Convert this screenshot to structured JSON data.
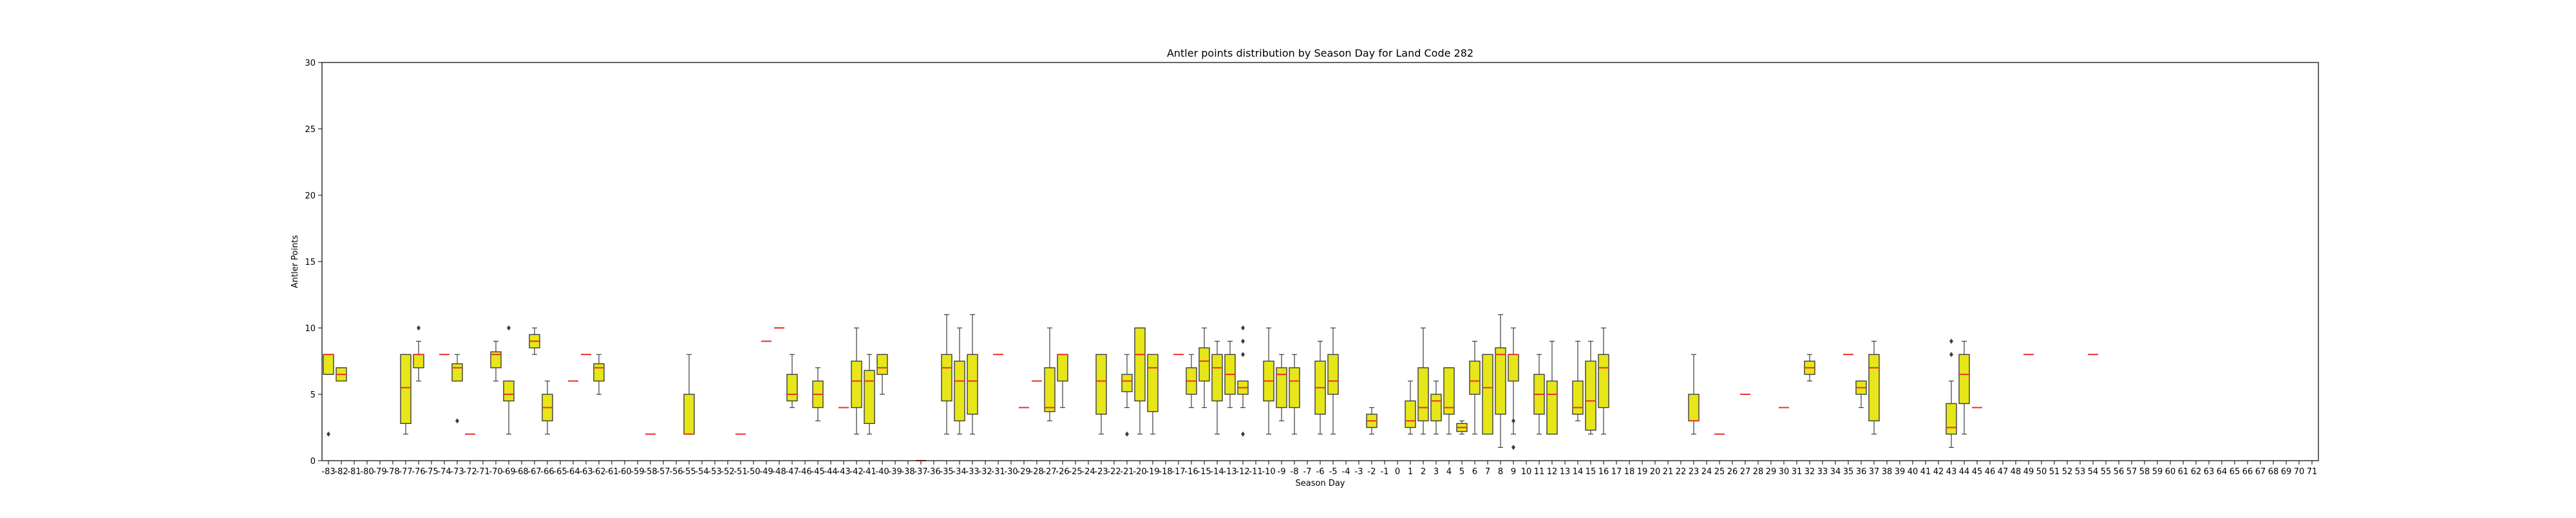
{
  "chart_data": {
    "type": "box",
    "title": "Antler points distribution by Season Day for Land Code 282",
    "xlabel": "Season Day",
    "ylabel": "Antler Points",
    "ylim": [
      0,
      30
    ],
    "y_ticks": [
      0,
      5,
      10,
      15,
      20,
      25,
      30
    ],
    "x_range": [
      -83,
      71
    ],
    "grid": false,
    "legend": "none",
    "colors": {
      "box_fill": "#e6e619",
      "box_edge": "#3d3d3d",
      "median": "#e8312a",
      "whisker": "#3d3d3d"
    },
    "boxes": [
      {
        "day": -83,
        "q1": 6.5,
        "median": 8,
        "q3": 8,
        "low": 6.5,
        "high": 8,
        "outliers": [
          2
        ]
      },
      {
        "day": -82,
        "q1": 6,
        "median": 6.5,
        "q3": 7,
        "low": 6,
        "high": 7,
        "outliers": []
      },
      {
        "day": -77,
        "q1": 2.8,
        "median": 5.5,
        "q3": 8,
        "low": 2,
        "high": 8,
        "outliers": []
      },
      {
        "day": -76,
        "q1": 7,
        "median": 8,
        "q3": 8,
        "low": 6,
        "high": 9,
        "outliers": [
          10
        ]
      },
      {
        "day": -74,
        "q1": 8,
        "median": 8,
        "q3": 8,
        "low": 8,
        "high": 8,
        "outliers": []
      },
      {
        "day": -73,
        "q1": 6,
        "median": 7,
        "q3": 7.3,
        "low": 6,
        "high": 8,
        "outliers": [
          3
        ]
      },
      {
        "day": -72,
        "q1": 2,
        "median": 2,
        "q3": 2,
        "low": 2,
        "high": 2,
        "outliers": []
      },
      {
        "day": -70,
        "q1": 7,
        "median": 8,
        "q3": 8.2,
        "low": 6,
        "high": 9,
        "outliers": []
      },
      {
        "day": -69,
        "q1": 4.5,
        "median": 5,
        "q3": 6,
        "low": 2,
        "high": 6,
        "outliers": [
          10
        ]
      },
      {
        "day": -67,
        "q1": 8.5,
        "median": 9,
        "q3": 9.5,
        "low": 8,
        "high": 10,
        "outliers": []
      },
      {
        "day": -66,
        "q1": 3,
        "median": 4,
        "q3": 5,
        "low": 2,
        "high": 6,
        "outliers": []
      },
      {
        "day": -64,
        "q1": 6,
        "median": 6,
        "q3": 6,
        "low": 6,
        "high": 6,
        "outliers": []
      },
      {
        "day": -63,
        "q1": 8,
        "median": 8,
        "q3": 8,
        "low": 8,
        "high": 8,
        "outliers": []
      },
      {
        "day": -62,
        "q1": 6,
        "median": 7,
        "q3": 7.3,
        "low": 5,
        "high": 8,
        "outliers": []
      },
      {
        "day": -58,
        "q1": 2,
        "median": 2,
        "q3": 2,
        "low": 2,
        "high": 2,
        "outliers": []
      },
      {
        "day": -55,
        "q1": 2,
        "median": 2,
        "q3": 5,
        "low": 2,
        "high": 8,
        "outliers": []
      },
      {
        "day": -51,
        "q1": 2,
        "median": 2,
        "q3": 2,
        "low": 2,
        "high": 2,
        "outliers": []
      },
      {
        "day": -49,
        "q1": 9,
        "median": 9,
        "q3": 9,
        "low": 9,
        "high": 9,
        "outliers": []
      },
      {
        "day": -48,
        "q1": 10,
        "median": 10,
        "q3": 10,
        "low": 10,
        "high": 10,
        "outliers": []
      },
      {
        "day": -47,
        "q1": 4.5,
        "median": 5,
        "q3": 6.5,
        "low": 4,
        "high": 8,
        "outliers": []
      },
      {
        "day": -45,
        "q1": 4,
        "median": 5,
        "q3": 6,
        "low": 3,
        "high": 7,
        "outliers": []
      },
      {
        "day": -43,
        "q1": 4,
        "median": 4,
        "q3": 4,
        "low": 4,
        "high": 4,
        "outliers": []
      },
      {
        "day": -42,
        "q1": 4,
        "median": 6,
        "q3": 7.5,
        "low": 2,
        "high": 10,
        "outliers": []
      },
      {
        "day": -41,
        "q1": 2.8,
        "median": 6,
        "q3": 6.8,
        "low": 2,
        "high": 8,
        "outliers": []
      },
      {
        "day": -40,
        "q1": 6.5,
        "median": 7,
        "q3": 8,
        "low": 5,
        "high": 8,
        "outliers": []
      },
      {
        "day": -37,
        "q1": 0,
        "median": 0,
        "q3": 0,
        "low": 0,
        "high": 0,
        "outliers": []
      },
      {
        "day": -35,
        "q1": 4.5,
        "median": 7,
        "q3": 8,
        "low": 2,
        "high": 11,
        "outliers": []
      },
      {
        "day": -34,
        "q1": 3,
        "median": 6,
        "q3": 7.5,
        "low": 2,
        "high": 10,
        "outliers": []
      },
      {
        "day": -33,
        "q1": 3.5,
        "median": 6,
        "q3": 8,
        "low": 2,
        "high": 11,
        "outliers": []
      },
      {
        "day": -31,
        "q1": 8,
        "median": 8,
        "q3": 8,
        "low": 8,
        "high": 8,
        "outliers": []
      },
      {
        "day": -29,
        "q1": 4,
        "median": 4,
        "q3": 4,
        "low": 4,
        "high": 4,
        "outliers": []
      },
      {
        "day": -28,
        "q1": 6,
        "median": 6,
        "q3": 6,
        "low": 6,
        "high": 6,
        "outliers": []
      },
      {
        "day": -27,
        "q1": 3.7,
        "median": 4,
        "q3": 7,
        "low": 3,
        "high": 10,
        "outliers": []
      },
      {
        "day": -26,
        "q1": 6,
        "median": 8,
        "q3": 8,
        "low": 4,
        "high": 8,
        "outliers": []
      },
      {
        "day": -23,
        "q1": 3.5,
        "median": 6,
        "q3": 8,
        "low": 2,
        "high": 8,
        "outliers": []
      },
      {
        "day": -21,
        "q1": 5.2,
        "median": 6,
        "q3": 6.5,
        "low": 4,
        "high": 8,
        "outliers": [
          2
        ]
      },
      {
        "day": -20,
        "q1": 4.5,
        "median": 8,
        "q3": 10,
        "low": 2,
        "high": 10,
        "outliers": []
      },
      {
        "day": -19,
        "q1": 3.7,
        "median": 7,
        "q3": 8,
        "low": 2,
        "high": 8,
        "outliers": []
      },
      {
        "day": -17,
        "q1": 8,
        "median": 8,
        "q3": 8,
        "low": 8,
        "high": 8,
        "outliers": []
      },
      {
        "day": -16,
        "q1": 5,
        "median": 6,
        "q3": 7,
        "low": 4,
        "high": 8,
        "outliers": []
      },
      {
        "day": -15,
        "q1": 6,
        "median": 7.5,
        "q3": 8.5,
        "low": 4,
        "high": 10,
        "outliers": []
      },
      {
        "day": -14,
        "q1": 4.5,
        "median": 7,
        "q3": 8,
        "low": 2,
        "high": 9,
        "outliers": []
      },
      {
        "day": -13,
        "q1": 5,
        "median": 6.5,
        "q3": 8,
        "low": 4,
        "high": 9,
        "outliers": []
      },
      {
        "day": -12,
        "q1": 5,
        "median": 5.5,
        "q3": 6,
        "low": 4,
        "high": 6,
        "outliers": [
          2,
          8,
          9,
          10
        ]
      },
      {
        "day": -10,
        "q1": 4.5,
        "median": 6,
        "q3": 7.5,
        "low": 2,
        "high": 10,
        "outliers": []
      },
      {
        "day": -9,
        "q1": 4,
        "median": 6.5,
        "q3": 7,
        "low": 3,
        "high": 8,
        "outliers": []
      },
      {
        "day": -8,
        "q1": 4,
        "median": 6,
        "q3": 7,
        "low": 2,
        "high": 8,
        "outliers": []
      },
      {
        "day": -6,
        "q1": 3.5,
        "median": 5.5,
        "q3": 7.5,
        "low": 2,
        "high": 9,
        "outliers": []
      },
      {
        "day": -5,
        "q1": 5,
        "median": 6,
        "q3": 8,
        "low": 2,
        "high": 10,
        "outliers": []
      },
      {
        "day": -2,
        "q1": 2.5,
        "median": 3,
        "q3": 3.5,
        "low": 2,
        "high": 4,
        "outliers": []
      },
      {
        "day": 1,
        "q1": 2.5,
        "median": 3,
        "q3": 4.5,
        "low": 2,
        "high": 6,
        "outliers": []
      },
      {
        "day": 2,
        "q1": 3,
        "median": 4,
        "q3": 7,
        "low": 2,
        "high": 10,
        "outliers": []
      },
      {
        "day": 3,
        "q1": 3,
        "median": 4.5,
        "q3": 5,
        "low": 2,
        "high": 6,
        "outliers": []
      },
      {
        "day": 4,
        "q1": 3.5,
        "median": 4,
        "q3": 7,
        "low": 2,
        "high": 7,
        "outliers": []
      },
      {
        "day": 5,
        "q1": 2.2,
        "median": 2.5,
        "q3": 2.8,
        "low": 2,
        "high": 3,
        "outliers": []
      },
      {
        "day": 6,
        "q1": 5,
        "median": 6,
        "q3": 7.5,
        "low": 2,
        "high": 9,
        "outliers": []
      },
      {
        "day": 7,
        "q1": 2,
        "median": 5.5,
        "q3": 8,
        "low": 2,
        "high": 8,
        "outliers": []
      },
      {
        "day": 8,
        "q1": 3.5,
        "median": 8,
        "q3": 8.5,
        "low": 1,
        "high": 11,
        "outliers": []
      },
      {
        "day": 9,
        "q1": 6,
        "median": 8,
        "q3": 8,
        "low": 2,
        "high": 10,
        "outliers": [
          1,
          3
        ]
      },
      {
        "day": 11,
        "q1": 3.5,
        "median": 5,
        "q3": 6.5,
        "low": 2,
        "high": 8,
        "outliers": []
      },
      {
        "day": 12,
        "q1": 2,
        "median": 5,
        "q3": 6,
        "low": 2,
        "high": 9,
        "outliers": []
      },
      {
        "day": 14,
        "q1": 3.5,
        "median": 4,
        "q3": 6,
        "low": 3,
        "high": 9,
        "outliers": []
      },
      {
        "day": 15,
        "q1": 2.3,
        "median": 4.5,
        "q3": 7.5,
        "low": 2,
        "high": 9,
        "outliers": []
      },
      {
        "day": 16,
        "q1": 4,
        "median": 7,
        "q3": 8,
        "low": 2,
        "high": 10,
        "outliers": []
      },
      {
        "day": 23,
        "q1": 3,
        "median": 3,
        "q3": 5,
        "low": 2,
        "high": 8,
        "outliers": []
      },
      {
        "day": 25,
        "q1": 2,
        "median": 2,
        "q3": 2,
        "low": 2,
        "high": 2,
        "outliers": []
      },
      {
        "day": 27,
        "q1": 5,
        "median": 5,
        "q3": 5,
        "low": 5,
        "high": 5,
        "outliers": []
      },
      {
        "day": 30,
        "q1": 4,
        "median": 4,
        "q3": 4,
        "low": 4,
        "high": 4,
        "outliers": []
      },
      {
        "day": 32,
        "q1": 6.5,
        "median": 7,
        "q3": 7.5,
        "low": 6,
        "high": 8,
        "outliers": []
      },
      {
        "day": 35,
        "q1": 8,
        "median": 8,
        "q3": 8,
        "low": 8,
        "high": 8,
        "outliers": []
      },
      {
        "day": 36,
        "q1": 5,
        "median": 5.5,
        "q3": 6,
        "low": 4,
        "high": 6,
        "outliers": []
      },
      {
        "day": 37,
        "q1": 3,
        "median": 7,
        "q3": 8,
        "low": 2,
        "high": 9,
        "outliers": []
      },
      {
        "day": 43,
        "q1": 2,
        "median": 2.5,
        "q3": 4.3,
        "low": 1,
        "high": 6,
        "outliers": [
          8,
          9
        ]
      },
      {
        "day": 44,
        "q1": 4.3,
        "median": 6.5,
        "q3": 8,
        "low": 2,
        "high": 9,
        "outliers": []
      },
      {
        "day": 45,
        "q1": 4,
        "median": 4,
        "q3": 4,
        "low": 4,
        "high": 4,
        "outliers": []
      },
      {
        "day": 49,
        "q1": 8,
        "median": 8,
        "q3": 8,
        "low": 8,
        "high": 8,
        "outliers": []
      },
      {
        "day": 54,
        "q1": 8,
        "median": 8,
        "q3": 8,
        "low": 8,
        "high": 8,
        "outliers": []
      }
    ]
  }
}
